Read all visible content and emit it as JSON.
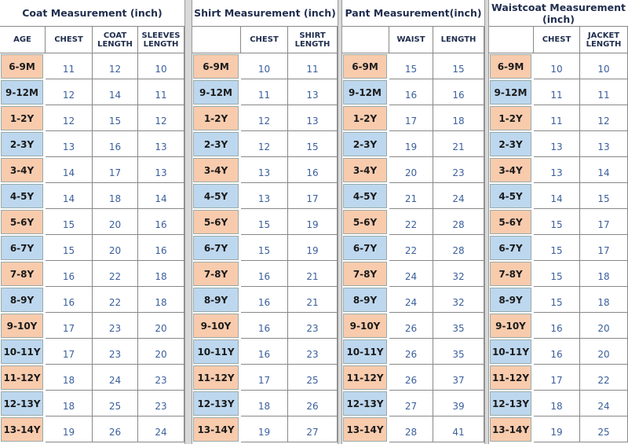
{
  "sections": [
    {
      "title": "Coat Measurement (inch)",
      "headers": [
        "AGE",
        "CHEST",
        "COAT LENGTH",
        "SLEEVES LENGTH"
      ],
      "rows": [
        [
          "6-9M",
          11,
          12,
          10
        ],
        [
          "9-12M",
          12,
          14,
          11
        ],
        [
          "1-2Y",
          12,
          15,
          12
        ],
        [
          "2-3Y",
          13,
          16,
          13
        ],
        [
          "3-4Y",
          14,
          17,
          13
        ],
        [
          "4-5Y",
          14,
          18,
          14
        ],
        [
          "5-6Y",
          15,
          20,
          16
        ],
        [
          "6-7Y",
          15,
          20,
          16
        ],
        [
          "7-8Y",
          16,
          22,
          18
        ],
        [
          "8-9Y",
          16,
          22,
          18
        ],
        [
          "9-10Y",
          17,
          23,
          20
        ],
        [
          "10-11Y",
          17,
          23,
          20
        ],
        [
          "11-12Y",
          18,
          24,
          23
        ],
        [
          "12-13Y",
          18,
          25,
          23
        ],
        [
          "13-14Y",
          19,
          26,
          24
        ]
      ]
    },
    {
      "title": "Shirt Measurement (inch)",
      "headers": [
        "CHEST",
        "SHIRT LENGTH"
      ],
      "rows": [
        [
          "6-9M",
          10,
          11
        ],
        [
          "9-12M",
          11,
          13
        ],
        [
          "1-2Y",
          12,
          13
        ],
        [
          "2-3Y",
          12,
          15
        ],
        [
          "3-4Y",
          13,
          16
        ],
        [
          "4-5Y",
          13,
          17
        ],
        [
          "5-6Y",
          15,
          19
        ],
        [
          "6-7Y",
          15,
          19
        ],
        [
          "7-8Y",
          16,
          21
        ],
        [
          "8-9Y",
          16,
          21
        ],
        [
          "9-10Y",
          16,
          23
        ],
        [
          "10-11Y",
          16,
          23
        ],
        [
          "11-12Y",
          17,
          25
        ],
        [
          "12-13Y",
          18,
          26
        ],
        [
          "13-14Y",
          19,
          27
        ]
      ]
    },
    {
      "title": "Pant Measurement(inch)",
      "headers": [
        "WAIST",
        "LENGTH"
      ],
      "rows": [
        [
          "6-9M",
          15,
          15
        ],
        [
          "9-12M",
          16,
          16
        ],
        [
          "1-2Y",
          17,
          18
        ],
        [
          "2-3Y",
          19,
          21
        ],
        [
          "3-4Y",
          20,
          23
        ],
        [
          "4-5Y",
          21,
          24
        ],
        [
          "5-6Y",
          22,
          28
        ],
        [
          "6-7Y",
          22,
          28
        ],
        [
          "7-8Y",
          24,
          32
        ],
        [
          "8-9Y",
          24,
          32
        ],
        [
          "9-10Y",
          26,
          35
        ],
        [
          "10-11Y",
          26,
          35
        ],
        [
          "11-12Y",
          26,
          37
        ],
        [
          "12-13Y",
          27,
          39
        ],
        [
          "13-14Y",
          28,
          41
        ]
      ]
    },
    {
      "title": "Waistcoat Measurement (inch)",
      "headers": [
        "CHEST",
        "JACKET LENGTH"
      ],
      "rows": [
        [
          "6-9M",
          10,
          10
        ],
        [
          "9-12M",
          11,
          11
        ],
        [
          "1-2Y",
          11,
          12
        ],
        [
          "2-3Y",
          13,
          13
        ],
        [
          "3-4Y",
          13,
          14
        ],
        [
          "4-5Y",
          14,
          15
        ],
        [
          "5-6Y",
          15,
          17
        ],
        [
          "6-7Y",
          15,
          17
        ],
        [
          "7-8Y",
          15,
          18
        ],
        [
          "8-9Y",
          15,
          18
        ],
        [
          "9-10Y",
          16,
          20
        ],
        [
          "10-11Y",
          16,
          20
        ],
        [
          "11-12Y",
          17,
          22
        ],
        [
          "12-13Y",
          18,
          24
        ],
        [
          "13-14Y",
          19,
          25
        ]
      ]
    }
  ]
}
